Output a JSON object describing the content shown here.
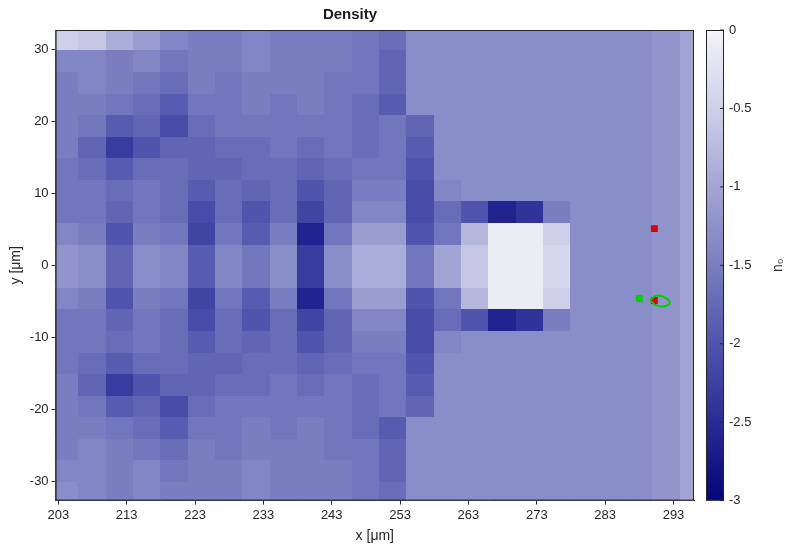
{
  "chart_data": {
    "type": "heatmap",
    "title": "Density",
    "x_label": "x [μm]",
    "y_label": "y [μm]",
    "xlim": [
      202.6,
      296
    ],
    "ylim": [
      -32.7,
      32.7
    ],
    "xticks": [
      203,
      213,
      223,
      233,
      243,
      253,
      263,
      273,
      283,
      293
    ],
    "yticks": [
      -30,
      -20,
      -10,
      0,
      10,
      20,
      30
    ],
    "grid": false,
    "x_bins": [
      202,
      206,
      210,
      214,
      218,
      222,
      226,
      230,
      234,
      238,
      242,
      246,
      250,
      254,
      258,
      262,
      266,
      270,
      274,
      278,
      282,
      286,
      290,
      294,
      298
    ],
    "y_bins": [
      -33,
      -30,
      -27,
      -24,
      -21,
      -18,
      -15,
      -12,
      -9,
      -6,
      -3,
      0,
      3,
      6,
      9,
      12,
      15,
      18,
      21,
      24,
      27,
      30,
      33
    ],
    "cells": [
      [
        -1.3,
        -1.4,
        -1.5,
        -1.4,
        -1.5,
        -1.5,
        -1.5,
        -1.4,
        -1.5,
        -1.5,
        -1.5,
        -1.6,
        -1.7,
        -1.3,
        -1.3,
        -1.3,
        -1.3,
        -1.3,
        -1.3,
        -1.3,
        -1.3,
        -1.3,
        -1.2,
        -1.0
      ],
      [
        -1.4,
        -1.4,
        -1.5,
        -1.4,
        -1.6,
        -1.5,
        -1.5,
        -1.4,
        -1.5,
        -1.5,
        -1.5,
        -1.6,
        -1.8,
        -1.3,
        -1.3,
        -1.3,
        -1.3,
        -1.3,
        -1.3,
        -1.3,
        -1.3,
        -1.3,
        -1.2,
        -1.0
      ],
      [
        -1.5,
        -1.4,
        -1.5,
        -1.6,
        -1.7,
        -1.5,
        -1.6,
        -1.5,
        -1.5,
        -1.5,
        -1.6,
        -1.6,
        -1.8,
        -1.3,
        -1.3,
        -1.3,
        -1.3,
        -1.3,
        -1.3,
        -1.3,
        -1.3,
        -1.3,
        -1.2,
        -1.0
      ],
      [
        -1.5,
        -1.5,
        -1.6,
        -1.7,
        -1.9,
        -1.6,
        -1.6,
        -1.5,
        -1.6,
        -1.5,
        -1.6,
        -1.7,
        -1.9,
        -1.3,
        -1.3,
        -1.3,
        -1.3,
        -1.3,
        -1.3,
        -1.3,
        -1.3,
        -1.3,
        -1.2,
        -1.0
      ],
      [
        -1.5,
        -1.6,
        -1.9,
        -1.8,
        -2.1,
        -1.7,
        -1.6,
        -1.6,
        -1.6,
        -1.6,
        -1.6,
        -1.7,
        -1.6,
        -1.8,
        -1.3,
        -1.3,
        -1.3,
        -1.3,
        -1.3,
        -1.3,
        -1.3,
        -1.3,
        -1.2,
        -1.0
      ],
      [
        -1.5,
        -1.8,
        -2.3,
        -2.0,
        -1.8,
        -1.8,
        -1.7,
        -1.7,
        -1.6,
        -1.7,
        -1.6,
        -1.7,
        -1.6,
        -1.9,
        -1.3,
        -1.3,
        -1.3,
        -1.3,
        -1.3,
        -1.3,
        -1.3,
        -1.3,
        -1.2,
        -1.0
      ],
      [
        -1.6,
        -1.7,
        -1.9,
        -1.7,
        -1.7,
        -1.8,
        -1.8,
        -1.7,
        -1.7,
        -1.8,
        -1.7,
        -1.6,
        -1.6,
        -2.0,
        -1.3,
        -1.3,
        -1.3,
        -1.3,
        -1.3,
        -1.3,
        -1.3,
        -1.3,
        -1.2,
        -1.0
      ],
      [
        -1.6,
        -1.6,
        -1.7,
        -1.6,
        -1.7,
        -1.9,
        -1.7,
        -1.8,
        -1.7,
        -2.0,
        -1.8,
        -1.5,
        -1.5,
        -2.1,
        -1.4,
        -1.3,
        -1.3,
        -1.3,
        -1.3,
        -1.3,
        -1.3,
        -1.3,
        -1.2,
        -1.0
      ],
      [
        -1.6,
        -1.6,
        -1.8,
        -1.6,
        -1.7,
        -2.1,
        -1.7,
        -2.0,
        -1.7,
        -2.2,
        -1.8,
        -1.4,
        -1.4,
        -2.1,
        -1.7,
        -2.0,
        -2.6,
        -2.4,
        -1.5,
        -1.3,
        -1.3,
        -1.3,
        -1.2,
        -1.0
      ],
      [
        -1.4,
        -1.5,
        -2.0,
        -1.5,
        -1.6,
        -2.2,
        -1.6,
        -1.9,
        -1.5,
        -2.6,
        -1.6,
        -1.1,
        -1.1,
        -2.0,
        -1.6,
        -0.8,
        -0.1,
        -0.1,
        -0.5,
        -1.3,
        -1.3,
        -1.3,
        -1.2,
        -1.0
      ],
      [
        -1.2,
        -1.3,
        -1.8,
        -1.3,
        -1.4,
        -1.9,
        -1.4,
        -1.6,
        -1.3,
        -2.3,
        -1.3,
        -0.9,
        -0.9,
        -1.6,
        -1.0,
        -0.6,
        -0.1,
        -0.1,
        -0.4,
        -1.3,
        -1.3,
        -1.3,
        -1.2,
        -1.0
      ],
      [
        -1.2,
        -1.3,
        -1.8,
        -1.3,
        -1.4,
        -1.9,
        -1.4,
        -1.6,
        -1.3,
        -2.3,
        -1.3,
        -0.9,
        -0.9,
        -1.6,
        -1.0,
        -0.6,
        -0.1,
        -0.1,
        -0.4,
        -1.3,
        -1.3,
        -1.3,
        -1.2,
        -1.0
      ],
      [
        -1.4,
        -1.5,
        -2.0,
        -1.5,
        -1.6,
        -2.2,
        -1.6,
        -1.9,
        -1.5,
        -2.6,
        -1.6,
        -1.1,
        -1.1,
        -2.0,
        -1.6,
        -0.8,
        -0.1,
        -0.1,
        -0.5,
        -1.3,
        -1.3,
        -1.3,
        -1.2,
        -1.0
      ],
      [
        -1.6,
        -1.6,
        -1.8,
        -1.6,
        -1.7,
        -2.1,
        -1.7,
        -2.0,
        -1.7,
        -2.2,
        -1.8,
        -1.4,
        -1.4,
        -2.1,
        -1.7,
        -2.0,
        -2.6,
        -2.4,
        -1.5,
        -1.3,
        -1.3,
        -1.3,
        -1.2,
        -1.0
      ],
      [
        -1.6,
        -1.6,
        -1.7,
        -1.6,
        -1.7,
        -1.9,
        -1.7,
        -1.8,
        -1.7,
        -2.0,
        -1.8,
        -1.5,
        -1.5,
        -2.1,
        -1.4,
        -1.3,
        -1.3,
        -1.3,
        -1.3,
        -1.3,
        -1.3,
        -1.3,
        -1.2,
        -1.0
      ],
      [
        -1.6,
        -1.7,
        -1.9,
        -1.7,
        -1.7,
        -1.8,
        -1.8,
        -1.7,
        -1.7,
        -1.8,
        -1.7,
        -1.6,
        -1.6,
        -2.0,
        -1.3,
        -1.3,
        -1.3,
        -1.3,
        -1.3,
        -1.3,
        -1.3,
        -1.3,
        -1.2,
        -1.0
      ],
      [
        -1.5,
        -1.8,
        -2.3,
        -2.0,
        -1.8,
        -1.8,
        -1.7,
        -1.7,
        -1.6,
        -1.7,
        -1.6,
        -1.7,
        -1.6,
        -1.9,
        -1.3,
        -1.3,
        -1.3,
        -1.3,
        -1.3,
        -1.3,
        -1.3,
        -1.3,
        -1.2,
        -1.0
      ],
      [
        -1.5,
        -1.6,
        -1.9,
        -1.8,
        -2.1,
        -1.7,
        -1.6,
        -1.6,
        -1.6,
        -1.6,
        -1.6,
        -1.7,
        -1.6,
        -1.8,
        -1.3,
        -1.3,
        -1.3,
        -1.3,
        -1.3,
        -1.3,
        -1.3,
        -1.3,
        -1.2,
        -1.0
      ],
      [
        -1.5,
        -1.5,
        -1.6,
        -1.7,
        -1.9,
        -1.6,
        -1.6,
        -1.5,
        -1.6,
        -1.5,
        -1.6,
        -1.7,
        -1.9,
        -1.3,
        -1.3,
        -1.3,
        -1.3,
        -1.3,
        -1.3,
        -1.3,
        -1.3,
        -1.3,
        -1.2,
        -1.0
      ],
      [
        -1.5,
        -1.4,
        -1.5,
        -1.6,
        -1.7,
        -1.5,
        -1.6,
        -1.5,
        -1.5,
        -1.5,
        -1.6,
        -1.6,
        -1.8,
        -1.3,
        -1.3,
        -1.3,
        -1.3,
        -1.3,
        -1.3,
        -1.3,
        -1.3,
        -1.3,
        -1.2,
        -1.0
      ],
      [
        -1.4,
        -1.4,
        -1.5,
        -1.4,
        -1.6,
        -1.5,
        -1.5,
        -1.4,
        -1.5,
        -1.5,
        -1.5,
        -1.6,
        -1.8,
        -1.3,
        -1.3,
        -1.3,
        -1.3,
        -1.3,
        -1.3,
        -1.3,
        -1.3,
        -1.3,
        -1.2,
        -1.0
      ],
      [
        -0.5,
        -0.6,
        -0.9,
        -1.1,
        -1.4,
        -1.5,
        -1.5,
        -1.4,
        -1.5,
        -1.5,
        -1.5,
        -1.6,
        -1.7,
        -1.3,
        -1.3,
        -1.3,
        -1.3,
        -1.3,
        -1.3,
        -1.3,
        -1.3,
        -1.3,
        -1.2,
        -1.0
      ]
    ],
    "colorbar": {
      "label": "n₀",
      "range": [
        -3,
        0
      ],
      "ticks": [
        0,
        -0.5,
        -1,
        -1.5,
        -2,
        -2.5,
        -3
      ]
    },
    "series": [
      {
        "color": "#00d000",
        "marker": "none",
        "line_style": "solid",
        "x": [
          289.6,
          290.5,
          291.8,
          292.5,
          291.7,
          290.3,
          289.6
        ],
        "y": [
          -4.8,
          -4.2,
          -4.5,
          -5.2,
          -5.7,
          -5.5,
          -4.8
        ]
      },
      {
        "color": "#00d000",
        "marker": "square",
        "line_style": "none",
        "x": [
          288
        ],
        "y": [
          -4.6
        ]
      },
      {
        "color": "#e00000",
        "marker": "square",
        "line_style": "none",
        "x": [
          290.2,
          290.2
        ],
        "y": [
          5.1,
          -4.9
        ]
      }
    ]
  }
}
